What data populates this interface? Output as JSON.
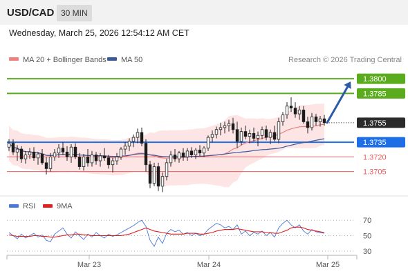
{
  "header": {
    "symbol": "USD/CAD",
    "interval": "30 MIN"
  },
  "datetime": "Wednesday, March 25, 2026 12:54:12 AM CET",
  "colors": {
    "bull": "#ffffff",
    "bear": "#1a1a1a",
    "candle_outline": "#222222",
    "bollinger_fill": "#fcdcdc",
    "ma20": "#f08080",
    "ma50": "#3a5a9a",
    "resistance": "#5aab1e",
    "support": "#1e6ee6",
    "minor_support": "#ef5b5b",
    "arrow": "#2a5aa8",
    "rsi": "#4a78d8",
    "rsi_ma": "#e02020",
    "current_tag": "#2b2b2b"
  },
  "chart_data": [
    {
      "type": "candlestick",
      "title": "",
      "legend": [
        {
          "name": "MA 20 + Bollinger Bands",
          "color": "#f08080"
        },
        {
          "name": "MA 50",
          "color": "#3a5a9a"
        }
      ],
      "legend_placement": "top-left",
      "source": "Research © 2026 Trading Central",
      "x_ticks": [
        "Mar 23",
        "Mar 24",
        "Mar 25"
      ],
      "ylim": [
        1.368,
        1.381
      ],
      "current_price": "1.3755",
      "levels": [
        {
          "label": "1.3800",
          "value": 1.38,
          "kind": "resistance"
        },
        {
          "label": "1.3785",
          "value": 1.3785,
          "kind": "resistance"
        },
        {
          "label": "1.3735",
          "value": 1.3735,
          "kind": "support"
        },
        {
          "label": "1.3720",
          "value": 1.372,
          "kind": "minor_support"
        },
        {
          "label": "1.3705",
          "value": 1.3705,
          "kind": "minor_support"
        }
      ],
      "target_arrow": {
        "from_value": 1.3755,
        "to_value": 1.38
      },
      "candles": [
        [
          1.373,
          1.3738,
          1.3726,
          1.3734
        ],
        [
          1.3734,
          1.3738,
          1.3722,
          1.3725
        ],
        [
          1.3725,
          1.3732,
          1.3716,
          1.3728
        ],
        [
          1.3728,
          1.3731,
          1.3714,
          1.3718
        ],
        [
          1.3718,
          1.3726,
          1.3713,
          1.3722
        ],
        [
          1.3722,
          1.3729,
          1.3718,
          1.3725
        ],
        [
          1.3725,
          1.373,
          1.3716,
          1.3719
        ],
        [
          1.3719,
          1.3725,
          1.3712,
          1.3723
        ],
        [
          1.3723,
          1.3728,
          1.3712,
          1.3714
        ],
        [
          1.3714,
          1.372,
          1.3702,
          1.3708
        ],
        [
          1.3708,
          1.3724,
          1.3705,
          1.372
        ],
        [
          1.372,
          1.3728,
          1.3716,
          1.3724
        ],
        [
          1.3724,
          1.3733,
          1.3719,
          1.3729
        ],
        [
          1.3729,
          1.3735,
          1.3722,
          1.3725
        ],
        [
          1.3725,
          1.3731,
          1.3716,
          1.372
        ],
        [
          1.372,
          1.3733,
          1.3714,
          1.373
        ],
        [
          1.373,
          1.3734,
          1.3718,
          1.372
        ],
        [
          1.372,
          1.3724,
          1.3707,
          1.371
        ],
        [
          1.371,
          1.3723,
          1.3706,
          1.372
        ],
        [
          1.372,
          1.3728,
          1.371,
          1.3714
        ],
        [
          1.3714,
          1.3726,
          1.371,
          1.3722
        ],
        [
          1.3722,
          1.3725,
          1.3712,
          1.3716
        ],
        [
          1.3716,
          1.3724,
          1.371,
          1.3721
        ],
        [
          1.3721,
          1.3729,
          1.3716,
          1.3719
        ],
        [
          1.3719,
          1.3722,
          1.3708,
          1.3712
        ],
        [
          1.3712,
          1.3719,
          1.3704,
          1.3716
        ],
        [
          1.3716,
          1.3724,
          1.3712,
          1.372
        ],
        [
          1.372,
          1.373,
          1.3717,
          1.3728
        ],
        [
          1.3728,
          1.3735,
          1.3722,
          1.3731
        ],
        [
          1.3731,
          1.3739,
          1.3726,
          1.3736
        ],
        [
          1.3736,
          1.3743,
          1.373,
          1.374
        ],
        [
          1.374,
          1.3749,
          1.3734,
          1.3745
        ],
        [
          1.3745,
          1.375,
          1.3731,
          1.3734
        ],
        [
          1.3734,
          1.3738,
          1.3705,
          1.3712
        ],
        [
          1.3712,
          1.3716,
          1.3688,
          1.3693
        ],
        [
          1.3693,
          1.3714,
          1.369,
          1.371
        ],
        [
          1.371,
          1.3714,
          1.3685,
          1.369
        ],
        [
          1.369,
          1.3704,
          1.3684,
          1.37
        ],
        [
          1.37,
          1.3718,
          1.3696,
          1.3714
        ],
        [
          1.3714,
          1.3726,
          1.371,
          1.3722
        ],
        [
          1.3722,
          1.3728,
          1.3715,
          1.3718
        ],
        [
          1.3718,
          1.3726,
          1.3714,
          1.3724
        ],
        [
          1.3724,
          1.3729,
          1.3716,
          1.372
        ],
        [
          1.372,
          1.3729,
          1.3716,
          1.3726
        ],
        [
          1.3726,
          1.373,
          1.3719,
          1.3722
        ],
        [
          1.3722,
          1.3729,
          1.3718,
          1.3727
        ],
        [
          1.3727,
          1.3732,
          1.3721,
          1.3724
        ],
        [
          1.3724,
          1.3731,
          1.372,
          1.3729
        ],
        [
          1.3729,
          1.3742,
          1.3726,
          1.374
        ],
        [
          1.374,
          1.3747,
          1.3735,
          1.3743
        ],
        [
          1.3743,
          1.3751,
          1.3739,
          1.3748
        ],
        [
          1.3748,
          1.3755,
          1.3742,
          1.375
        ],
        [
          1.375,
          1.3756,
          1.3744,
          1.3752
        ],
        [
          1.3752,
          1.3758,
          1.3746,
          1.3754
        ],
        [
          1.3754,
          1.376,
          1.3744,
          1.3748
        ],
        [
          1.3748,
          1.3756,
          1.3729,
          1.3736
        ],
        [
          1.3736,
          1.375,
          1.3732,
          1.3746
        ],
        [
          1.3746,
          1.3752,
          1.3738,
          1.3741
        ],
        [
          1.3741,
          1.3748,
          1.3734,
          1.3744
        ],
        [
          1.3744,
          1.375,
          1.3736,
          1.3739
        ],
        [
          1.3739,
          1.3746,
          1.3731,
          1.3742
        ],
        [
          1.3742,
          1.3751,
          1.3738,
          1.3748
        ],
        [
          1.3748,
          1.3752,
          1.3737,
          1.374
        ],
        [
          1.374,
          1.3748,
          1.3733,
          1.3745
        ],
        [
          1.3745,
          1.3752,
          1.3736,
          1.3738
        ],
        [
          1.3738,
          1.376,
          1.3734,
          1.3756
        ],
        [
          1.3756,
          1.3766,
          1.3752,
          1.3763
        ],
        [
          1.3763,
          1.3776,
          1.3759,
          1.3772
        ],
        [
          1.3772,
          1.3781,
          1.3766,
          1.377
        ],
        [
          1.377,
          1.3776,
          1.376,
          1.3764
        ],
        [
          1.3764,
          1.3772,
          1.3758,
          1.3768
        ],
        [
          1.3768,
          1.3772,
          1.3754,
          1.3756
        ],
        [
          1.3756,
          1.3761,
          1.3744,
          1.375
        ],
        [
          1.375,
          1.3765,
          1.3747,
          1.3761
        ],
        [
          1.3761,
          1.3764,
          1.3752,
          1.3756
        ],
        [
          1.3756,
          1.3762,
          1.3751,
          1.3759
        ],
        [
          1.3759,
          1.3763,
          1.3752,
          1.3755
        ]
      ]
    },
    {
      "type": "line",
      "title": "",
      "legend": [
        {
          "name": "RSI",
          "color": "#4a78d8"
        },
        {
          "name": "9MA",
          "color": "#e02020"
        }
      ],
      "ylim": [
        20,
        80
      ],
      "y_ticks": [
        "70",
        "50",
        "30"
      ],
      "series": [
        {
          "name": "RSI",
          "values": [
            54,
            50,
            46,
            52,
            47,
            50,
            53,
            48,
            51,
            44,
            42,
            52,
            56,
            60,
            52,
            47,
            55,
            50,
            45,
            52,
            48,
            54,
            50,
            47,
            52,
            49,
            51,
            54,
            57,
            60,
            63,
            67,
            70,
            62,
            44,
            36,
            48,
            40,
            53,
            58,
            55,
            57,
            52,
            54,
            50,
            53,
            50,
            52,
            58,
            62,
            66,
            64,
            60,
            62,
            58,
            64,
            52,
            56,
            50,
            54,
            52,
            56,
            50,
            54,
            48,
            60,
            66,
            70,
            64,
            60,
            64,
            56,
            52,
            58,
            55,
            54,
            53
          ]
        },
        {
          "name": "9MA",
          "values": [
            51,
            50,
            49,
            49,
            49,
            49,
            50,
            50,
            49,
            49,
            48,
            48,
            49,
            50,
            51,
            51,
            52,
            52,
            51,
            51,
            50,
            50,
            50,
            50,
            50,
            50,
            50,
            50,
            51,
            52,
            54,
            56,
            58,
            60,
            58,
            56,
            55,
            54,
            53,
            52,
            52,
            52,
            52,
            53,
            53,
            53,
            52,
            52,
            53,
            54,
            56,
            57,
            58,
            58,
            58,
            59,
            58,
            57,
            56,
            55,
            55,
            55,
            54,
            54,
            53,
            53,
            55,
            57,
            60,
            61,
            61,
            60,
            58,
            57,
            56,
            55,
            54
          ]
        }
      ]
    }
  ]
}
